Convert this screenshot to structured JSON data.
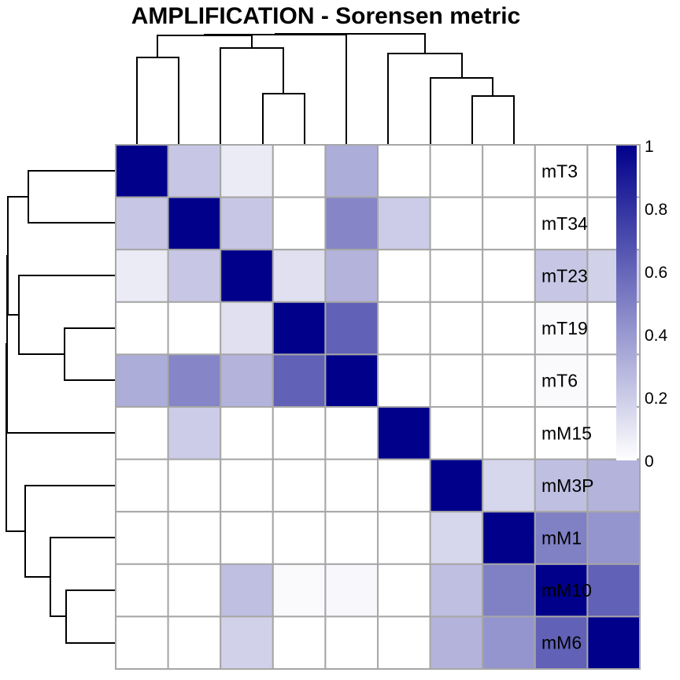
{
  "chart_data": {
    "type": "heatmap",
    "title": "AMPLIFICATION - Sorensen metric",
    "row_labels": [
      "mT3",
      "mT34",
      "mT23",
      "mT19",
      "mT6",
      "mM15",
      "mM3P",
      "mM1",
      "mM10",
      "mM6"
    ],
    "column_labels_shown": false,
    "values": [
      [
        1.0,
        0.22,
        0.08,
        0.0,
        0.32,
        0.0,
        0.0,
        0.0,
        0.0,
        0.0
      ],
      [
        0.22,
        1.0,
        0.22,
        0.0,
        0.48,
        0.2,
        0.0,
        0.0,
        0.0,
        0.0
      ],
      [
        0.08,
        0.22,
        1.0,
        0.12,
        0.3,
        0.0,
        0.0,
        0.0,
        0.22,
        0.18
      ],
      [
        0.0,
        0.0,
        0.12,
        1.0,
        0.62,
        0.0,
        0.0,
        0.0,
        0.02,
        0.0
      ],
      [
        0.32,
        0.48,
        0.3,
        0.62,
        1.0,
        0.0,
        0.0,
        0.0,
        0.02,
        0.0
      ],
      [
        0.0,
        0.2,
        0.0,
        0.0,
        0.0,
        1.0,
        0.0,
        0.0,
        0.0,
        0.0
      ],
      [
        0.0,
        0.0,
        0.0,
        0.0,
        0.0,
        0.0,
        1.0,
        0.16,
        0.25,
        0.3
      ],
      [
        0.0,
        0.0,
        0.0,
        0.0,
        0.0,
        0.0,
        0.16,
        1.0,
        0.5,
        0.42
      ],
      [
        0.0,
        0.0,
        0.25,
        0.02,
        0.03,
        0.0,
        0.25,
        0.5,
        1.0,
        0.62
      ],
      [
        0.0,
        0.0,
        0.18,
        0.0,
        0.0,
        0.0,
        0.3,
        0.42,
        0.62,
        1.0
      ]
    ],
    "color_scale": {
      "low": "#ffffff",
      "high": "#00008b",
      "range": [
        0,
        1
      ]
    },
    "legend": {
      "position": "right",
      "ticks": [
        0,
        0.2,
        0.4,
        0.6,
        0.8,
        1
      ],
      "tick_labels": [
        "0",
        "0.2",
        "0.4",
        "0.6",
        "0.8",
        "1"
      ]
    },
    "dendrogram": {
      "side": "left and top",
      "merges": [
        {
          "a": "mT3",
          "b": "mT34",
          "height": 0.78
        },
        {
          "a": "mT19",
          "b": "mT6",
          "height": 0.62
        },
        {
          "a": "mT23",
          "b": [
            "mT19",
            "mT6"
          ],
          "height": 0.82
        },
        {
          "a": [
            "mT3",
            "mT34"
          ],
          "b": [
            "mT23",
            "mT19",
            "mT6"
          ],
          "height": 0.93
        },
        {
          "a": "mM10",
          "b": "mM6",
          "height": 0.55
        },
        {
          "a": "mM1",
          "b": [
            "mM10",
            "mM6"
          ],
          "height": 0.66
        },
        {
          "a": "mM3P",
          "b": [
            "mM1",
            "mM10",
            "mM6"
          ],
          "height": 0.85
        },
        {
          "a": [
            "mT3",
            "mT34",
            "mT23",
            "mT19",
            "mT6"
          ],
          "b": "mM15",
          "height": 0.99
        },
        {
          "a": "all-T-and-mM15",
          "b": "all-M",
          "height": 1.0
        }
      ]
    }
  }
}
